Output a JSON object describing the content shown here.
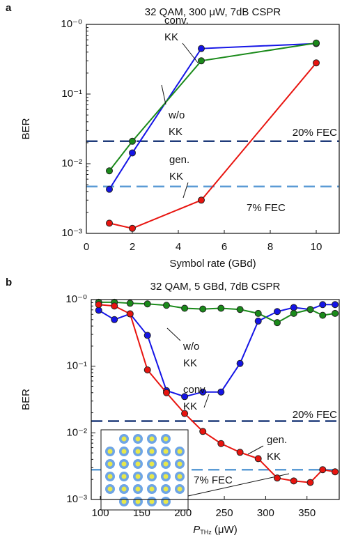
{
  "chart_data": [
    {
      "type": "line",
      "panel": "a",
      "title": "32 QAM, 300 μW, 7dB CSPR",
      "xlabel": "Symbol rate (GBd)",
      "ylabel": "BER",
      "x": [
        1,
        2,
        5,
        10
      ],
      "xlim": [
        0,
        11
      ],
      "xticks": [
        0,
        2,
        4,
        6,
        8,
        10
      ],
      "ylog": true,
      "ylim": [
        0.001,
        1
      ],
      "yticks": [
        {
          "value": 0.001,
          "label": "10⁻³"
        },
        {
          "value": 0.01,
          "label": "10⁻²"
        },
        {
          "value": 0.1,
          "label": "10⁻¹"
        },
        {
          "value": 1,
          "label": "10⁻⁰"
        }
      ],
      "series": [
        {
          "label": [
            "conv.",
            "KK"
          ],
          "color": "#1414e6",
          "values": [
            0.0043,
            0.0143,
            0.45,
            0.53
          ]
        },
        {
          "label": [
            "w/o",
            "KK"
          ],
          "color": "#1a8a1a",
          "values": [
            0.0079,
            0.021,
            0.3,
            0.54
          ]
        },
        {
          "label": [
            "gen.",
            "KK"
          ],
          "color": "#e8140f",
          "values": [
            0.0014,
            0.00118,
            0.003,
            0.28
          ]
        }
      ],
      "thresholds": [
        {
          "name": "20% FEC",
          "value": 0.021,
          "color": "#1f3b7a"
        },
        {
          "name": "7% FEC",
          "value": 0.0047,
          "color": "#5b9bd5"
        }
      ]
    },
    {
      "type": "line",
      "panel": "b",
      "title": "32 QAM, 5 GBd, 7dB CSPR",
      "xlabel": {
        "main": "P",
        "sub": "THz",
        "unit": " (μW)"
      },
      "ylabel": "BER",
      "x": [
        98,
        117,
        136,
        157,
        180,
        202,
        224,
        246,
        269,
        291,
        314,
        334,
        354,
        369,
        384
      ],
      "xlim": [
        89,
        389
      ],
      "xticks": [
        100,
        150,
        200,
        250,
        300,
        350
      ],
      "ylog": true,
      "ylim": [
        0.001,
        1
      ],
      "yticks": [
        {
          "value": 0.001,
          "label": "10⁻³"
        },
        {
          "value": 0.01,
          "label": "10⁻²"
        },
        {
          "value": 0.1,
          "label": "10⁻¹"
        },
        {
          "value": 1,
          "label": "10⁻⁰"
        }
      ],
      "series": [
        {
          "label": [
            "conv.",
            "KK"
          ],
          "color": "#1414e6",
          "values": [
            0.69,
            0.5,
            0.61,
            0.29,
            0.043,
            0.035,
            0.041,
            0.041,
            0.11,
            0.475,
            0.66,
            0.76,
            0.71,
            0.84,
            0.84
          ]
        },
        {
          "label": [
            "w/o",
            "KK"
          ],
          "color": "#1a8a1a",
          "values": [
            0.91,
            0.91,
            0.88,
            0.86,
            0.82,
            0.74,
            0.72,
            0.74,
            0.71,
            0.62,
            0.45,
            0.62,
            0.71,
            0.58,
            0.62
          ]
        },
        {
          "label": [
            "gen.",
            "KK"
          ],
          "color": "#e8140f",
          "values": [
            0.84,
            0.8,
            0.61,
            0.088,
            0.04,
            0.0195,
            0.0105,
            0.0069,
            0.0051,
            0.0041,
            0.0021,
            0.0019,
            0.0018,
            0.0028,
            0.0026
          ]
        }
      ],
      "thresholds": [
        {
          "name": "20% FEC",
          "value": 0.015,
          "color": "#1f3b7a"
        },
        {
          "name": "7% FEC",
          "value": 0.0028,
          "color": "#5b9bd5"
        }
      ]
    }
  ]
}
